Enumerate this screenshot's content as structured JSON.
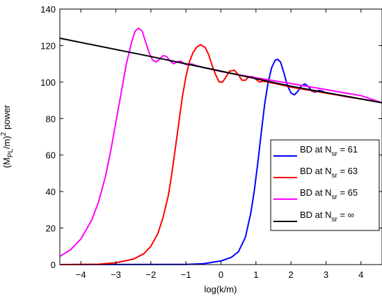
{
  "chart_data": {
    "type": "line",
    "xlabel": "log(k/m)",
    "ylabel": {
      "prefix": "(M",
      "sub": "PL",
      "mid": "/m)",
      "sup": "2",
      "suffix": " power"
    },
    "xlim": [
      -4.6,
      4.6
    ],
    "ylim": [
      0,
      140
    ],
    "xticks": [
      -4,
      -3,
      -2,
      -1,
      0,
      1,
      2,
      3,
      4
    ],
    "xtick_labels": [
      "−4",
      "−3",
      "−2",
      "−1",
      "0",
      "1",
      "2",
      "3",
      "4"
    ],
    "yticks": [
      0,
      20,
      40,
      60,
      80,
      100,
      120,
      140
    ],
    "ytick_labels": [
      "0",
      "20",
      "40",
      "60",
      "80",
      "100",
      "120",
      "140"
    ],
    "grid": false,
    "legend_placement": "lower-right",
    "series": [
      {
        "name": "BD at N_sr = 61",
        "legend": {
          "prefix": "BD at N",
          "sub": "sr",
          "suffix": " = 61"
        },
        "color": "#0000ff",
        "points": [
          [
            -4.6,
            0
          ],
          [
            -1.0,
            0.1
          ],
          [
            -0.5,
            0.5
          ],
          [
            0,
            2
          ],
          [
            0.3,
            4
          ],
          [
            0.5,
            7
          ],
          [
            0.7,
            15
          ],
          [
            0.85,
            28
          ],
          [
            0.95,
            40
          ],
          [
            1.05,
            55
          ],
          [
            1.15,
            72
          ],
          [
            1.25,
            88
          ],
          [
            1.35,
            100
          ],
          [
            1.45,
            108
          ],
          [
            1.55,
            112
          ],
          [
            1.62,
            112.5
          ],
          [
            1.7,
            111
          ],
          [
            1.8,
            105
          ],
          [
            1.9,
            98
          ],
          [
            2.0,
            94
          ],
          [
            2.1,
            93
          ],
          [
            2.2,
            95
          ],
          [
            2.3,
            98
          ],
          [
            2.4,
            99
          ],
          [
            2.5,
            97.5
          ],
          [
            2.6,
            95
          ],
          [
            2.7,
            94.5
          ],
          [
            2.8,
            95.5
          ],
          [
            2.9,
            95
          ],
          [
            3.0,
            94
          ],
          [
            3.2,
            93.5
          ],
          [
            3.5,
            92.3
          ],
          [
            4.0,
            90.7
          ],
          [
            4.6,
            88.7
          ]
        ]
      },
      {
        "name": "BD at N_sr = 63",
        "legend": {
          "prefix": "BD at N",
          "sub": "sr",
          "suffix": " = 63"
        },
        "color": "#ff0000",
        "points": [
          [
            -4.6,
            0
          ],
          [
            -3.5,
            0.2
          ],
          [
            -3.0,
            1
          ],
          [
            -2.5,
            3
          ],
          [
            -2.2,
            6
          ],
          [
            -2.0,
            10
          ],
          [
            -1.8,
            17
          ],
          [
            -1.65,
            26
          ],
          [
            -1.5,
            38
          ],
          [
            -1.4,
            50
          ],
          [
            -1.3,
            64
          ],
          [
            -1.2,
            78
          ],
          [
            -1.1,
            92
          ],
          [
            -1.0,
            103
          ],
          [
            -0.9,
            111
          ],
          [
            -0.8,
            116
          ],
          [
            -0.7,
            119
          ],
          [
            -0.58,
            120.5
          ],
          [
            -0.45,
            119
          ],
          [
            -0.35,
            115
          ],
          [
            -0.25,
            109
          ],
          [
            -0.15,
            104
          ],
          [
            -0.05,
            100
          ],
          [
            0.05,
            100
          ],
          [
            0.15,
            103
          ],
          [
            0.25,
            106
          ],
          [
            0.38,
            106.5
          ],
          [
            0.5,
            104
          ],
          [
            0.6,
            101
          ],
          [
            0.7,
            101
          ],
          [
            0.8,
            103
          ],
          [
            0.9,
            103
          ],
          [
            1.0,
            101.5
          ],
          [
            1.1,
            100
          ],
          [
            1.2,
            100.5
          ],
          [
            1.35,
            100
          ],
          [
            1.6,
            99
          ],
          [
            2.0,
            97.2
          ],
          [
            2.5,
            95.6
          ],
          [
            3.0,
            94
          ],
          [
            3.5,
            92.3
          ],
          [
            4.0,
            90.7
          ],
          [
            4.6,
            88.7
          ]
        ]
      },
      {
        "name": "BD at N_sr = 65",
        "legend": {
          "prefix": "BD at N",
          "sub": "sr",
          "suffix": " = 65"
        },
        "color": "#ff00ff",
        "points": [
          [
            -4.6,
            4.5
          ],
          [
            -4.3,
            8
          ],
          [
            -4.0,
            14
          ],
          [
            -3.7,
            24
          ],
          [
            -3.5,
            34
          ],
          [
            -3.3,
            48
          ],
          [
            -3.15,
            62
          ],
          [
            -3.0,
            78
          ],
          [
            -2.85,
            94
          ],
          [
            -2.7,
            110
          ],
          [
            -2.55,
            122
          ],
          [
            -2.45,
            128
          ],
          [
            -2.35,
            129.5
          ],
          [
            -2.25,
            128
          ],
          [
            -2.15,
            122
          ],
          [
            -2.05,
            116
          ],
          [
            -1.95,
            112
          ],
          [
            -1.85,
            111
          ],
          [
            -1.75,
            112.5
          ],
          [
            -1.65,
            114.5
          ],
          [
            -1.55,
            114
          ],
          [
            -1.45,
            111.5
          ],
          [
            -1.35,
            110
          ],
          [
            -1.25,
            111
          ],
          [
            -1.15,
            111.5
          ],
          [
            -1.05,
            110
          ],
          [
            -0.95,
            109.5
          ],
          [
            -0.85,
            110
          ],
          [
            -0.7,
            109
          ],
          [
            -0.5,
            108
          ],
          [
            0,
            105.8
          ],
          [
            0.5,
            104
          ],
          [
            1.0,
            102.4
          ],
          [
            1.5,
            100.8
          ],
          [
            2.0,
            99.2
          ],
          [
            2.5,
            97.5
          ],
          [
            3.0,
            95.9
          ],
          [
            3.5,
            94.2
          ],
          [
            4.0,
            92.6
          ],
          [
            4.6,
            88.7
          ]
        ]
      },
      {
        "name": "BD at N_sr = ∞",
        "legend": {
          "prefix": "BD at N",
          "sub": "sr",
          "suffix": " = ∞"
        },
        "color": "#000000",
        "points": [
          [
            -4.6,
            124
          ],
          [
            -2,
            114
          ],
          [
            0,
            106
          ],
          [
            2,
            97.7
          ],
          [
            4.6,
            88.7
          ]
        ]
      }
    ]
  }
}
